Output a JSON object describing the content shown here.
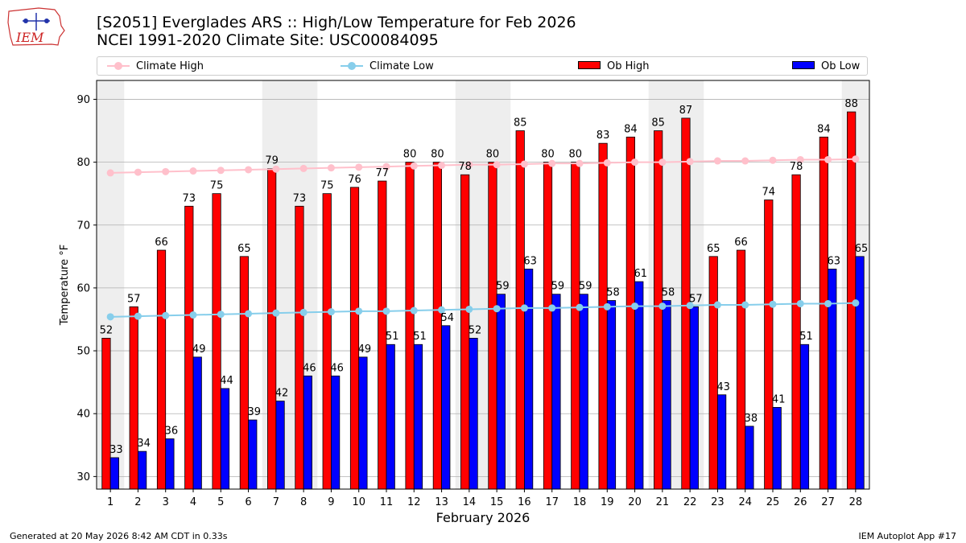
{
  "header": {
    "logo_text": "IEM",
    "title_line1": "[S2051] Everglades ARS :: High/Low Temperature for Feb 2026",
    "title_line2": "NCEI 1991-2020 Climate Site: USC00084095"
  },
  "legend": {
    "climate_high": "Climate High",
    "climate_low": "Climate Low",
    "ob_high": "Ob High",
    "ob_low": "Ob Low"
  },
  "footer": {
    "generated": "Generated at 20 May 2026 8:42 AM CDT in 0.33s",
    "app": "IEM Autoplot App #17"
  },
  "colors": {
    "ob_high": "#ff0000",
    "ob_low": "#0000ff",
    "climate_high": "#ffc0cb",
    "climate_low": "#87ceeb",
    "weekend_shade": "#eeeeee"
  },
  "chart_data": {
    "type": "bar",
    "xlabel": "February 2026",
    "ylabel": "Temperature °F",
    "ylim": [
      28,
      93
    ],
    "yticks": [
      30,
      40,
      50,
      60,
      70,
      80,
      90
    ],
    "grid": "horizontal",
    "legend_position": "top",
    "categories": [
      "1",
      "2",
      "3",
      "4",
      "5",
      "6",
      "7",
      "8",
      "9",
      "10",
      "11",
      "12",
      "13",
      "14",
      "15",
      "16",
      "17",
      "18",
      "19",
      "20",
      "21",
      "22",
      "23",
      "24",
      "25",
      "26",
      "27",
      "28"
    ],
    "shaded_days": [
      1,
      7,
      8,
      14,
      15,
      21,
      22,
      28
    ],
    "series": [
      {
        "name": "Ob High",
        "kind": "bar",
        "values": [
          52,
          57,
          66,
          73,
          75,
          65,
          79,
          73,
          75,
          76,
          77,
          80,
          80,
          78,
          80,
          85,
          80,
          80,
          83,
          84,
          85,
          87,
          65,
          66,
          74,
          78,
          84,
          88
        ]
      },
      {
        "name": "Ob Low",
        "kind": "bar",
        "values": [
          33,
          34,
          36,
          49,
          44,
          39,
          42,
          46,
          46,
          49,
          51,
          51,
          54,
          52,
          59,
          63,
          59,
          59,
          58,
          61,
          58,
          57,
          43,
          38,
          41,
          51,
          63,
          65
        ]
      },
      {
        "name": "Climate High",
        "kind": "line",
        "values": [
          78.3,
          78.4,
          78.5,
          78.6,
          78.7,
          78.8,
          78.9,
          79.0,
          79.1,
          79.2,
          79.3,
          79.4,
          79.5,
          79.6,
          79.6,
          79.7,
          79.8,
          79.8,
          79.9,
          80.0,
          80.0,
          80.1,
          80.2,
          80.2,
          80.3,
          80.4,
          80.4,
          80.5
        ]
      },
      {
        "name": "Climate Low",
        "kind": "line",
        "values": [
          55.4,
          55.5,
          55.6,
          55.7,
          55.8,
          55.9,
          56.0,
          56.1,
          56.2,
          56.3,
          56.3,
          56.4,
          56.5,
          56.6,
          56.7,
          56.8,
          56.8,
          56.9,
          57.0,
          57.1,
          57.1,
          57.2,
          57.3,
          57.3,
          57.4,
          57.5,
          57.5,
          57.6
        ]
      }
    ]
  }
}
